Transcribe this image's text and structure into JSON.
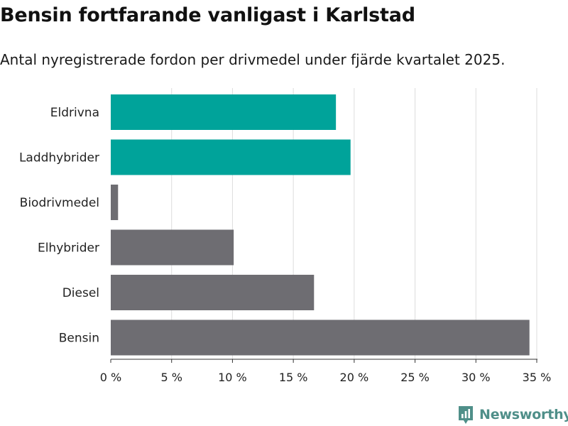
{
  "title": "Bensin fortfarande vanligast i Karlstad",
  "subtitle": "Antal nyregistrerade fordon per drivmedel under fjärde kvartalet 2025.",
  "brand": "Newsworthy",
  "colors": {
    "highlight": "#00a39a",
    "default": "#6e6d72",
    "grid": "#dddddd",
    "logo": "#4f8f89"
  },
  "chart_data": {
    "type": "bar",
    "orientation": "horizontal",
    "categories": [
      "Eldrivna",
      "Laddhybrider",
      "Biodrivmedel",
      "Elhybrider",
      "Diesel",
      "Bensin"
    ],
    "values": [
      18.5,
      19.7,
      0.6,
      10.1,
      16.7,
      34.4
    ],
    "highlighted": [
      "Eldrivna",
      "Laddhybrider"
    ],
    "xlim": [
      0,
      35
    ],
    "xticks": [
      0,
      5,
      10,
      15,
      20,
      25,
      30,
      35
    ],
    "tick_labels": [
      "0 %",
      "5 %",
      "10 %",
      "15 %",
      "20 %",
      "25 %",
      "30 %",
      "35 %"
    ],
    "grid": true
  }
}
